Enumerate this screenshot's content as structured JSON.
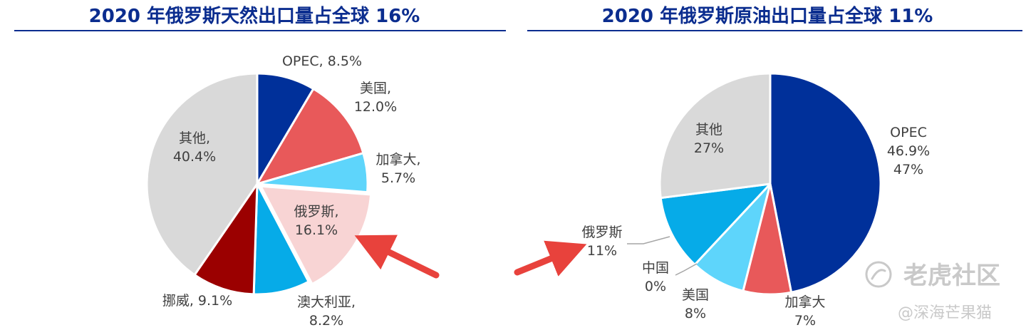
{
  "colors": {
    "title": "#0b2d8f",
    "title_rule": "#0b2d8f",
    "arrow": "#e8423c",
    "label": "#404040",
    "leader": "#a6a6a6"
  },
  "chart_data": [
    {
      "type": "pie",
      "title": "2020 年俄罗斯天然出口量占全球 16%",
      "unit": "%",
      "slices": [
        {
          "name": "OPEC",
          "value": 8.5,
          "label_lines": [
            "OPEC, 8.5%"
          ],
          "color": "#00309a"
        },
        {
          "name": "美国",
          "value": 12.0,
          "label_lines": [
            "美国,",
            "12.0%"
          ],
          "color": "#e8595a"
        },
        {
          "name": "加拿大",
          "value": 5.7,
          "label_lines": [
            "加拿大,",
            "5.7%"
          ],
          "color": "#5ed5fb"
        },
        {
          "name": "俄罗斯",
          "value": 16.1,
          "label_lines": [
            "俄罗斯,",
            "16.1%"
          ],
          "color": "#f8d4d4"
        },
        {
          "name": "澳大利亚",
          "value": 8.2,
          "label_lines": [
            "澳大利亚,",
            "8.2%"
          ],
          "color": "#06abe8"
        },
        {
          "name": "挪威",
          "value": 9.1,
          "label_lines": [
            "挪威, 9.1%"
          ],
          "color": "#9b0000"
        },
        {
          "name": "其他",
          "value": 40.4,
          "label_lines": [
            "其他,",
            "40.4%"
          ],
          "color": "#d9d9d9"
        }
      ]
    },
    {
      "type": "pie",
      "title": "2020 年俄罗斯原油出口量占全球 11%",
      "unit": "%",
      "slices": [
        {
          "name": "OPEC",
          "value": 46.9,
          "label_lines": [
            "OPEC",
            "46.9%",
            "47%"
          ],
          "color": "#00309a"
        },
        {
          "name": "加拿大",
          "value": 7,
          "label_lines": [
            "加拿大",
            "7%"
          ],
          "color": "#e8595a"
        },
        {
          "name": "美国",
          "value": 8,
          "label_lines": [
            "美国",
            "8%"
          ],
          "color": "#5ed5fb"
        },
        {
          "name": "中国",
          "value": 0,
          "label_lines": [
            "中国",
            "0%"
          ],
          "color": "#5ed5fb"
        },
        {
          "name": "俄罗斯",
          "value": 11,
          "label_lines": [
            "俄罗斯",
            "11%"
          ],
          "color": "#06abe8"
        },
        {
          "name": "其他",
          "value": 27,
          "label_lines": [
            "其他",
            "27%"
          ],
          "color": "#d9d9d9"
        }
      ]
    }
  ],
  "watermark": {
    "brand": "老虎社区",
    "author": "@深海芒果猫"
  }
}
